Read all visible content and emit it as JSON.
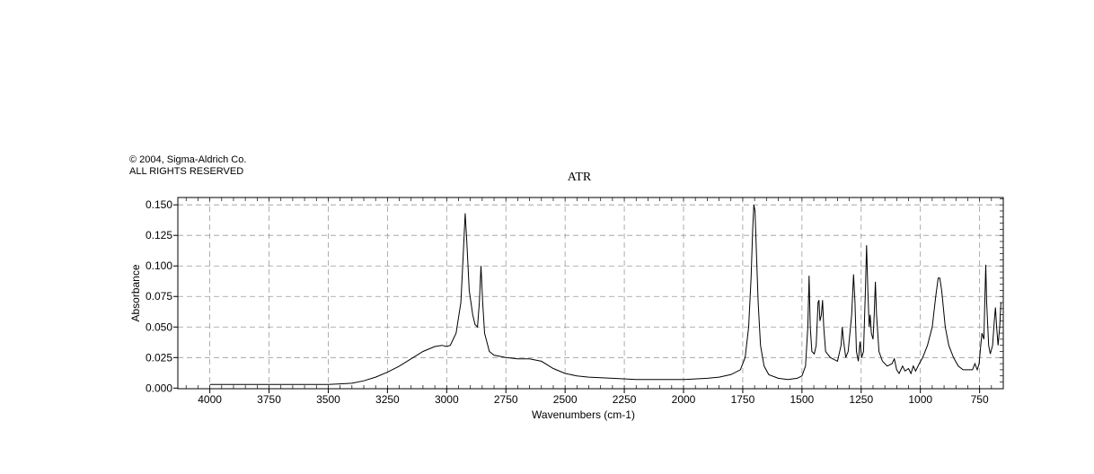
{
  "copyright": {
    "line1": "© 2004, Sigma-Aldrich Co.",
    "line2": "ALL RIGHTS RESERVED"
  },
  "chart_data": {
    "type": "line",
    "title": "ATR",
    "xlabel": "Wavenumbers (cm-1)",
    "ylabel": "Absorbance",
    "xlim": [
      4135,
      650
    ],
    "ylim": [
      -0.0005,
      0.156
    ],
    "x_reversed": true,
    "grid": true,
    "grid_style": "dashed",
    "x_ticks": [
      4000,
      3750,
      3500,
      3250,
      3000,
      2750,
      2500,
      2250,
      2000,
      1750,
      1500,
      1250,
      1000,
      750
    ],
    "x_tick_labels": [
      "4000",
      "3750",
      "3500",
      "3250",
      "3000",
      "2750",
      "2500",
      "2250",
      "2000",
      "1750",
      "1500",
      "1250",
      "1000",
      "750"
    ],
    "y_ticks": [
      0.0,
      0.025,
      0.05,
      0.075,
      0.1,
      0.125,
      0.15
    ],
    "y_tick_labels": [
      "0.000",
      "0.025",
      "0.050",
      "0.075",
      "0.100",
      "0.125",
      "0.150"
    ],
    "line_color": "#000000",
    "grid_color": "#9a9a9a",
    "series": [
      {
        "points": [
          [
            4000,
            0.003
          ],
          [
            3900,
            0.003
          ],
          [
            3800,
            0.003
          ],
          [
            3700,
            0.003
          ],
          [
            3600,
            0.003
          ],
          [
            3500,
            0.003
          ],
          [
            3450,
            0.0035
          ],
          [
            3400,
            0.004
          ],
          [
            3350,
            0.006
          ],
          [
            3300,
            0.009
          ],
          [
            3250,
            0.013
          ],
          [
            3200,
            0.018
          ],
          [
            3150,
            0.024
          ],
          [
            3100,
            0.03
          ],
          [
            3050,
            0.034
          ],
          [
            3020,
            0.035
          ],
          [
            3000,
            0.034
          ],
          [
            2985,
            0.035
          ],
          [
            2960,
            0.045
          ],
          [
            2940,
            0.07
          ],
          [
            2930,
            0.11
          ],
          [
            2922,
            0.143
          ],
          [
            2915,
            0.12
          ],
          [
            2905,
            0.08
          ],
          [
            2890,
            0.06
          ],
          [
            2880,
            0.052
          ],
          [
            2870,
            0.05
          ],
          [
            2862,
            0.07
          ],
          [
            2855,
            0.1
          ],
          [
            2848,
            0.07
          ],
          [
            2840,
            0.045
          ],
          [
            2820,
            0.03
          ],
          [
            2800,
            0.027
          ],
          [
            2750,
            0.025
          ],
          [
            2700,
            0.024
          ],
          [
            2650,
            0.024
          ],
          [
            2600,
            0.022
          ],
          [
            2550,
            0.016
          ],
          [
            2500,
            0.012
          ],
          [
            2450,
            0.01
          ],
          [
            2400,
            0.009
          ],
          [
            2300,
            0.008
          ],
          [
            2200,
            0.007
          ],
          [
            2100,
            0.007
          ],
          [
            2000,
            0.007
          ],
          [
            1900,
            0.008
          ],
          [
            1850,
            0.009
          ],
          [
            1800,
            0.011
          ],
          [
            1760,
            0.015
          ],
          [
            1740,
            0.025
          ],
          [
            1725,
            0.05
          ],
          [
            1715,
            0.09
          ],
          [
            1708,
            0.13
          ],
          [
            1703,
            0.15
          ],
          [
            1698,
            0.145
          ],
          [
            1692,
            0.11
          ],
          [
            1685,
            0.07
          ],
          [
            1675,
            0.035
          ],
          [
            1660,
            0.018
          ],
          [
            1640,
            0.011
          ],
          [
            1600,
            0.008
          ],
          [
            1560,
            0.007
          ],
          [
            1520,
            0.008
          ],
          [
            1500,
            0.01
          ],
          [
            1485,
            0.018
          ],
          [
            1475,
            0.05
          ],
          [
            1470,
            0.092
          ],
          [
            1465,
            0.05
          ],
          [
            1458,
            0.03
          ],
          [
            1448,
            0.028
          ],
          [
            1440,
            0.035
          ],
          [
            1432,
            0.07
          ],
          [
            1428,
            0.072
          ],
          [
            1424,
            0.055
          ],
          [
            1418,
            0.06
          ],
          [
            1413,
            0.072
          ],
          [
            1408,
            0.05
          ],
          [
            1400,
            0.03
          ],
          [
            1380,
            0.025
          ],
          [
            1350,
            0.022
          ],
          [
            1335,
            0.035
          ],
          [
            1330,
            0.05
          ],
          [
            1325,
            0.04
          ],
          [
            1315,
            0.025
          ],
          [
            1305,
            0.03
          ],
          [
            1290,
            0.06
          ],
          [
            1282,
            0.093
          ],
          [
            1276,
            0.07
          ],
          [
            1270,
            0.03
          ],
          [
            1262,
            0.022
          ],
          [
            1255,
            0.038
          ],
          [
            1248,
            0.025
          ],
          [
            1240,
            0.03
          ],
          [
            1232,
            0.08
          ],
          [
            1227,
            0.117
          ],
          [
            1222,
            0.08
          ],
          [
            1216,
            0.05
          ],
          [
            1212,
            0.06
          ],
          [
            1207,
            0.045
          ],
          [
            1200,
            0.04
          ],
          [
            1195,
            0.06
          ],
          [
            1190,
            0.087
          ],
          [
            1185,
            0.06
          ],
          [
            1175,
            0.03
          ],
          [
            1160,
            0.022
          ],
          [
            1140,
            0.018
          ],
          [
            1120,
            0.02
          ],
          [
            1110,
            0.024
          ],
          [
            1100,
            0.015
          ],
          [
            1090,
            0.012
          ],
          [
            1075,
            0.018
          ],
          [
            1065,
            0.014
          ],
          [
            1050,
            0.016
          ],
          [
            1040,
            0.012
          ],
          [
            1030,
            0.018
          ],
          [
            1020,
            0.014
          ],
          [
            1005,
            0.02
          ],
          [
            990,
            0.025
          ],
          [
            970,
            0.035
          ],
          [
            950,
            0.05
          ],
          [
            935,
            0.075
          ],
          [
            925,
            0.09
          ],
          [
            918,
            0.09
          ],
          [
            910,
            0.08
          ],
          [
            895,
            0.05
          ],
          [
            880,
            0.035
          ],
          [
            860,
            0.025
          ],
          [
            840,
            0.018
          ],
          [
            820,
            0.015
          ],
          [
            800,
            0.015
          ],
          [
            780,
            0.015
          ],
          [
            770,
            0.02
          ],
          [
            760,
            0.015
          ],
          [
            752,
            0.02
          ],
          [
            745,
            0.035
          ],
          [
            740,
            0.045
          ],
          [
            732,
            0.04
          ],
          [
            728,
            0.07
          ],
          [
            724,
            0.101
          ],
          [
            720,
            0.07
          ],
          [
            712,
            0.035
          ],
          [
            705,
            0.028
          ],
          [
            695,
            0.035
          ],
          [
            688,
            0.055
          ],
          [
            683,
            0.066
          ],
          [
            678,
            0.05
          ],
          [
            672,
            0.035
          ],
          [
            665,
            0.05
          ],
          [
            660,
            0.07
          ]
        ]
      }
    ]
  }
}
